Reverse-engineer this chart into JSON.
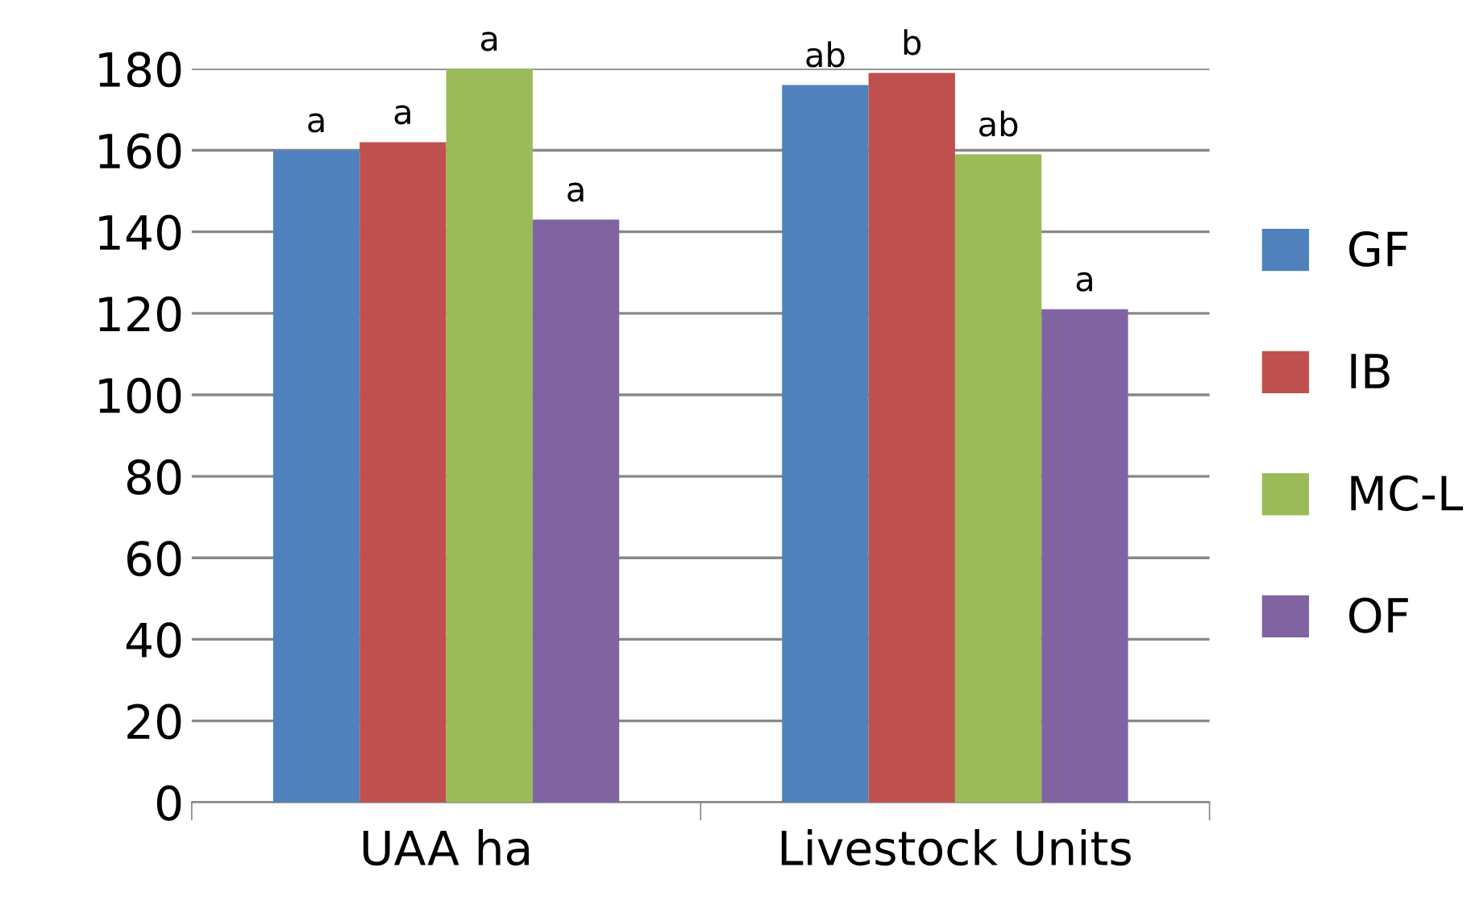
{
  "chart_data": {
    "type": "bar",
    "categories": [
      "UAA ha",
      "Livestock Units"
    ],
    "series": [
      {
        "name": "GF",
        "color": "#4f81bd",
        "values": [
          160,
          176
        ]
      },
      {
        "name": "IB",
        "color": "#c0504d",
        "values": [
          162,
          179
        ]
      },
      {
        "name": "MC-L",
        "color": "#9bbb59",
        "values": [
          180,
          159
        ]
      },
      {
        "name": "OF",
        "color": "#8064a2",
        "values": [
          143,
          121
        ]
      }
    ],
    "ylim": [
      0,
      180
    ],
    "yticks": [
      0,
      20,
      40,
      60,
      80,
      100,
      120,
      140,
      160,
      180
    ],
    "grid": "y",
    "legend": "right",
    "annotations": [
      "a",
      "a",
      "a",
      "a",
      "ab",
      "b",
      "ab",
      "a"
    ]
  }
}
